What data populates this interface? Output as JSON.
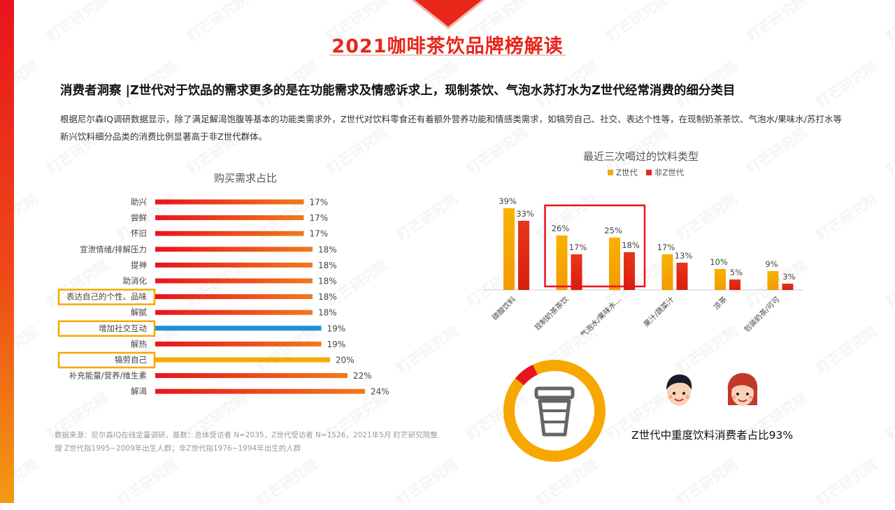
{
  "header": {
    "title": "2021咖啡茶饮品牌榜解读",
    "headline": "消费者洞察 |Z世代对于饮品的需求更多的是在功能需求及情感诉求上，现制茶饮、气泡水苏打水为Z世代经常消费的细分类目",
    "description": "根据尼尔森IQ调研数据显示，除了满足解渴饱腹等基本的功能类需求外，Z世代对饮料零食还有着额外营养功能和情感类需求，如犒劳自己、社交、表达个性等，在现制奶茶茶饮、气泡水/果味水/苏打水等新兴饮料细分品类的消费比例显著高于非Z世代群体。"
  },
  "footnote": {
    "line1": "数据来源：尼尔森IQ在线定量调研，基数：总体受访者 N=2035，Z世代受访者 N=1526，2021年5月  盯芒研究院整",
    "line2": "理  Z世代指1995~2009年出生人群；非Z世代指1976~1994年出生的人群"
  },
  "watermark": "盯芒研究院",
  "colors": {
    "accent_red": "#e8261a",
    "bar_red": "#e8141c",
    "bar_orange": "#f07a1c",
    "highlight_blue": "#1e90d6",
    "highlight_yellow": "#f6a800",
    "z_gen": "#f6a800",
    "non_z_gen": "#e32a1a"
  },
  "chart_data": [
    {
      "type": "bar",
      "orientation": "horizontal",
      "title": "购买需求占比",
      "categories": [
        "助兴",
        "尝鲜",
        "怀旧",
        "宣泄情绪/排解压力",
        "提神",
        "助消化",
        "表达自己的个性、品味",
        "解腻",
        "增加社交互动",
        "解热",
        "犒劳自己",
        "补充能量/营养/维生素",
        "解渴"
      ],
      "values": [
        17,
        17,
        17,
        18,
        18,
        18,
        18,
        18,
        19,
        19,
        20,
        22,
        24
      ],
      "value_labels": [
        "17%",
        "17%",
        "17%",
        "18%",
        "18%",
        "18%",
        "18%",
        "18%",
        "19%",
        "19%",
        "20%",
        "22%",
        "24%"
      ],
      "highlighted": [
        "表达自己的个性、品味",
        "增加社交互动",
        "犒劳自己"
      ],
      "highlight_colors": {
        "增加社交互动": "#1e90d6",
        "犒劳自己": "#f6a800"
      },
      "xlim": [
        0,
        24
      ],
      "grid": false
    },
    {
      "type": "bar",
      "title": "最近三次喝过的饮料类型",
      "categories": [
        "碳酸饮料",
        "现制奶茶茶饮",
        "气泡水/果味水…",
        "果汁/蔬菜汁",
        "凉茶",
        "包装奶茶/可可"
      ],
      "series": [
        {
          "name": "Z世代",
          "values": [
            39,
            26,
            25,
            17,
            10,
            9
          ],
          "labels": [
            "39%",
            "26%",
            "25%",
            "17%",
            "10%",
            "9%"
          ]
        },
        {
          "name": "非Z世代",
          "values": [
            33,
            17,
            18,
            13,
            5,
            3
          ],
          "labels": [
            "33%",
            "17%",
            "18%",
            "13%",
            "5%",
            "3%"
          ]
        }
      ],
      "highlighted_categories": [
        "现制奶茶茶饮",
        "气泡水/果味水…"
      ],
      "ylim": [
        0,
        40
      ],
      "legend": "top",
      "grid": false
    },
    {
      "type": "pie",
      "style": "donut",
      "title": "",
      "caption": "Z世代中重度饮料消费者占比93%",
      "slices": [
        {
          "label": "Z世代中重度饮料消费者",
          "value": 93,
          "color": "#f6a800"
        },
        {
          "label": "",
          "value": 7,
          "color": "#e8141c"
        }
      ],
      "center_icon": "cup-icon"
    }
  ]
}
